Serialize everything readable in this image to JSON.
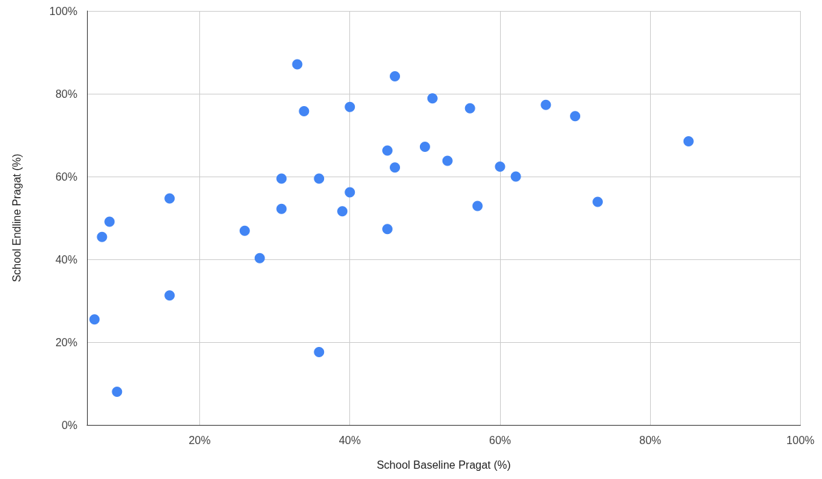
{
  "chart_data": {
    "type": "scatter",
    "xlabel": "School Baseline Pragat (%)",
    "ylabel": "School Endline Pragat (%)",
    "x": [
      33.0,
      46.0,
      51.0,
      33.9,
      40.0,
      56.0,
      66.1,
      70.0,
      85.1,
      45.0,
      50.0,
      53.0,
      46.0,
      60.0,
      62.1,
      30.9,
      35.9,
      40.0,
      16.0,
      30.9,
      39.0,
      57.0,
      73.0,
      8.0,
      7.0,
      26.0,
      45.0,
      28.0,
      16.0,
      6.0,
      35.9,
      9.0
    ],
    "series": [
      {
        "color": "#4285f4",
        "values": [
          87.1,
          84.2,
          78.9,
          75.8,
          76.8,
          76.5,
          77.3,
          74.6,
          68.5,
          66.3,
          67.2,
          63.8,
          62.2,
          62.4,
          60.0,
          59.5,
          59.5,
          56.2,
          54.7,
          52.2,
          51.6,
          52.9,
          53.9,
          49.1,
          45.4,
          46.9,
          47.3,
          40.3,
          31.3,
          25.5,
          17.6,
          8.0
        ]
      }
    ],
    "xlim": [
      5,
      100
    ],
    "xticks": [
      {
        "value": 20,
        "label": "20%"
      },
      {
        "value": 40,
        "label": "40%"
      },
      {
        "value": 60,
        "label": "60%"
      },
      {
        "value": 80,
        "label": "80%"
      },
      {
        "value": 100,
        "label": "100%"
      }
    ],
    "ylim": [
      0,
      100
    ],
    "yticks": [
      {
        "value": 0,
        "label": "0%"
      },
      {
        "value": 20,
        "label": "20%"
      },
      {
        "value": 40,
        "label": "40%"
      },
      {
        "value": 60,
        "label": "60%"
      },
      {
        "value": 80,
        "label": "80%"
      },
      {
        "value": 100,
        "label": "100%"
      }
    ],
    "grid": true,
    "marker": "circle"
  }
}
